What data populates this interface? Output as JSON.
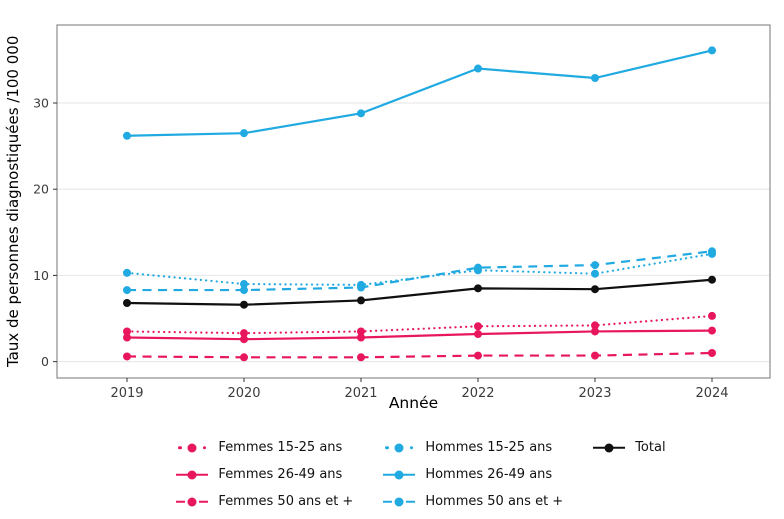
{
  "chart_data": {
    "type": "line",
    "title": "",
    "xlabel": "Année",
    "ylabel": "Taux de personnes diagnostiquées /100 000",
    "x": [
      "2019",
      "2020",
      "2021",
      "2022",
      "2023",
      "2024"
    ],
    "yticks": [
      0,
      10,
      20,
      30
    ],
    "ylim": [
      -1.9,
      39.05
    ],
    "grid": "horizontal-only",
    "legend_position": "bottom",
    "panel_border_color": "#8c8c8c",
    "gridline_color": "#e9e9e9",
    "tick_color": "#333333",
    "colors": {
      "femmes": "#E8175D",
      "hommes": "#20AAE1",
      "total": "#101010"
    },
    "series": [
      {
        "name": "Femmes 15-25 ans",
        "color": "#E8175D",
        "style": "dotted",
        "values": [
          3.5,
          3.3,
          3.5,
          4.1,
          4.2,
          5.3
        ]
      },
      {
        "name": "Femmes 26-49 ans",
        "color": "#E8175D",
        "style": "solid",
        "values": [
          2.8,
          2.6,
          2.8,
          3.2,
          3.5,
          3.6
        ]
      },
      {
        "name": "Femmes 50 ans et +",
        "color": "#E8175D",
        "style": "dashed",
        "values": [
          0.6,
          0.5,
          0.5,
          0.7,
          0.7,
          1.0
        ]
      },
      {
        "name": "Hommes 15-25 ans",
        "color": "#20AAE1",
        "style": "dotted",
        "values": [
          10.3,
          9.0,
          8.9,
          10.6,
          10.2,
          12.5
        ]
      },
      {
        "name": "Hommes 26-49 ans",
        "color": "#20AAE1",
        "style": "solid",
        "values": [
          26.2,
          26.5,
          28.8,
          34.0,
          32.9,
          36.1
        ]
      },
      {
        "name": "Hommes 50 ans et +",
        "color": "#20AAE1",
        "style": "dashed",
        "values": [
          8.3,
          8.3,
          8.6,
          10.9,
          11.2,
          12.8
        ]
      },
      {
        "name": "Total",
        "color": "#101010",
        "style": "solid",
        "values": [
          6.8,
          6.6,
          7.1,
          8.5,
          8.4,
          9.5
        ]
      }
    ],
    "legend_columns": [
      [
        "Femmes 15-25 ans",
        "Femmes 26-49 ans",
        "Femmes 50 ans et +"
      ],
      [
        "Hommes 15-25 ans",
        "Hommes 26-49 ans",
        "Hommes 50 ans et +"
      ],
      [
        "Total"
      ]
    ]
  }
}
